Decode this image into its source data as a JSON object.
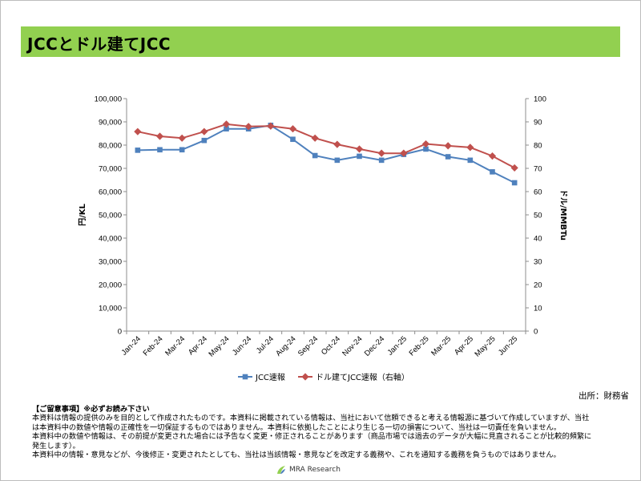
{
  "header": {
    "title": "JCCとドル建てJCC"
  },
  "chart_data": {
    "type": "line",
    "categories": [
      "Jan-24",
      "Feb-24",
      "Mar-24",
      "Apr-24",
      "May-24",
      "Jun-24",
      "Jul-24",
      "Aug-24",
      "Sep-24",
      "Oct-24",
      "Nov-24",
      "Dec-24",
      "Jan-25",
      "Feb-25",
      "Mar-25",
      "Apr-25",
      "May-25",
      "Jun-25"
    ],
    "series": [
      {
        "name": "JCC速報",
        "axis": "left",
        "color": "#4f81bd",
        "marker": "square",
        "values": [
          77800,
          78000,
          78000,
          82000,
          87000,
          87000,
          88500,
          82500,
          75500,
          73500,
          75200,
          73500,
          76000,
          78300,
          75000,
          73500,
          68500,
          63800
        ]
      },
      {
        "name": "ドル建てJCC速報（右軸）",
        "axis": "right",
        "color": "#c0504d",
        "marker": "diamond",
        "values": [
          85.8,
          83.8,
          83.0,
          85.8,
          89.0,
          88.0,
          88.2,
          87.0,
          83.0,
          80.3,
          78.3,
          76.5,
          76.5,
          80.5,
          79.7,
          79.0,
          75.3,
          70.2
        ]
      }
    ],
    "y_left": {
      "label": "円/KL",
      "min": 0,
      "max": 100000,
      "step": 10000,
      "tick_labels": [
        "0",
        "10,000",
        "20,000",
        "30,000",
        "40,000",
        "50,000",
        "60,000",
        "70,000",
        "80,000",
        "90,000",
        "100,000"
      ]
    },
    "y_right": {
      "label": "ドル/MMBTu",
      "min": 0,
      "max": 100,
      "step": 10,
      "tick_labels": [
        "0",
        "10",
        "20",
        "30",
        "40",
        "50",
        "60",
        "70",
        "80",
        "90",
        "100"
      ]
    },
    "grid": false,
    "legend_position": "bottom"
  },
  "source": "出所：財務省",
  "notes": {
    "heading": "【ご留意事項】※必ずお読み下さい",
    "lines": [
      "本資料は情報の提供のみを目的として作成されたものです。本資料に掲載されている情報は、当社において信頼できると考える情報源に基づいて作成していますが、当社",
      "は本資料中の数値や情報の正確性を一切保証するものではありません。本資料に依拠したことにより生じる一切の損害について、当社は一切責任を負いません。",
      "本資料中の数値や情報は、その前提が変更された場合には予告なく変更・修正されることがあります（商品市場では過去のデータが大幅に見直されることが比較的頻繁に",
      "発生します）。",
      "本資料中の情報・意見などが、今後修正・変更されたとしても、当社は当該情報・意見などを改定する義務や、これを通知する義務を負うものではありません。"
    ]
  },
  "footer": {
    "brand": "MRA Research",
    "logo_colors": [
      "#92d050",
      "#4f81bd"
    ]
  }
}
